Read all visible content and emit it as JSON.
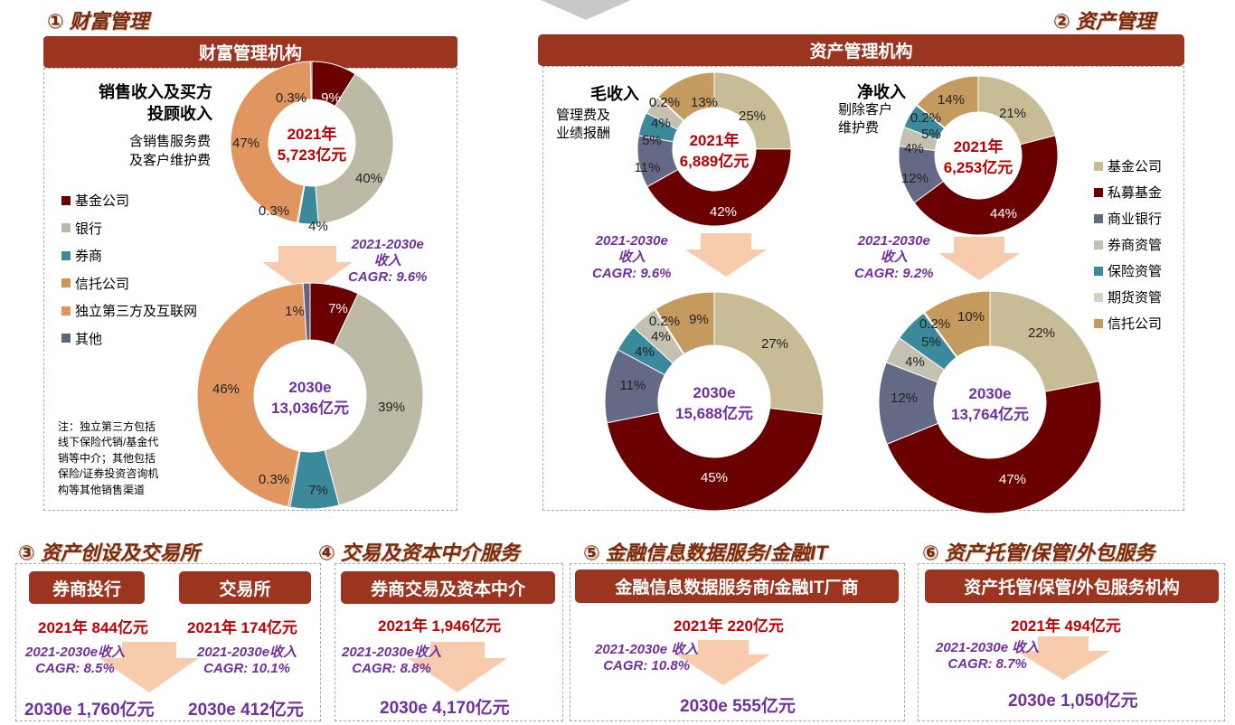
{
  "wealth": {
    "section_title": "① 财富管理",
    "bar_label": "财富管理机构",
    "heading_l1": "销售收入及买方",
    "heading_l2": "投顾收入",
    "sub_l1": "含销售服务费",
    "sub_l2": "及客户维护费",
    "legend": [
      {
        "label": "基金公司",
        "color": "#6b0000"
      },
      {
        "label": "银行",
        "color": "#bcb9a5"
      },
      {
        "label": "券商",
        "color": "#3a8a9c"
      },
      {
        "label": "信托公司",
        "color": "#c49a5e"
      },
      {
        "label": "独立第三方及互联网",
        "color": "#e0965e"
      },
      {
        "label": "其他",
        "color": "#5e6580"
      }
    ],
    "cagr_l1": "2021-2030e",
    "cagr_l2": "收入",
    "cagr_l3": "CAGR: 9.6%",
    "note": [
      "注：独立第三方包括",
      "线下保险代销/基金代",
      "销等中介；其他包括",
      "保险/证券投资咨询机",
      "构等其他销售渠道"
    ]
  },
  "asset": {
    "section_title": "② 资产管理",
    "bar_label": "资产管理机构",
    "gross_title": "毛收入",
    "gross_sub_l1": "管理费及",
    "gross_sub_l2": "业绩报酬",
    "net_title": "净收入",
    "net_sub_l1": "剔除客户",
    "net_sub_l2": "维护费",
    "gross_cagr": [
      "2021-2030e",
      "收入",
      "CAGR: 9.6%"
    ],
    "net_cagr": [
      "2021-2030e",
      "收入",
      "CAGR: 9.2%"
    ],
    "legend": [
      {
        "label": "基金公司",
        "color": "#c8bc96"
      },
      {
        "label": "私募基金",
        "color": "#6b0000"
      },
      {
        "label": "商业银行",
        "color": "#646a85"
      },
      {
        "label": "券商资管",
        "color": "#c4c1b0"
      },
      {
        "label": "保险资管",
        "color": "#3a8a9c"
      },
      {
        "label": "期货资管",
        "color": "#d6d3c6"
      },
      {
        "label": "信托公司",
        "color": "#c49a5e"
      }
    ]
  },
  "chart_data": [
    {
      "type": "pie",
      "id": "wealth-2021",
      "center_l1": "2021年",
      "center_l2": "5,723亿元",
      "labels": [
        "基金公司",
        "银行",
        "券商",
        "信托公司",
        "独立第三方及互联网",
        "其他"
      ],
      "values": [
        9,
        40,
        4,
        0.3,
        47,
        0.3
      ],
      "value_labels": [
        "9%",
        "40%",
        "4%",
        "0.3%",
        "47%",
        "0.3%"
      ]
    },
    {
      "type": "pie",
      "id": "wealth-2030",
      "center_l1": "2030e",
      "center_l2": "13,036亿元",
      "labels": [
        "基金公司",
        "银行",
        "券商",
        "信托公司",
        "独立第三方及互联网",
        "其他"
      ],
      "values": [
        7,
        39,
        7,
        0.3,
        46,
        1
      ],
      "value_labels": [
        "7%",
        "39%",
        "7%",
        "0.3%",
        "46%",
        "1%"
      ]
    },
    {
      "type": "pie",
      "id": "gross-2021",
      "center_l1": "2021年",
      "center_l2": "6,889亿元",
      "labels": [
        "基金公司",
        "私募基金",
        "商业银行",
        "保险资管",
        "券商资管",
        "期货资管",
        "信托公司"
      ],
      "values": [
        25,
        42,
        11,
        5,
        4,
        0.2,
        13
      ],
      "value_labels": [
        "25%",
        "42%",
        "11%",
        "5%",
        "4%",
        "0.2%",
        "13%"
      ]
    },
    {
      "type": "pie",
      "id": "gross-2030",
      "center_l1": "2030e",
      "center_l2": "15,688亿元",
      "labels": [
        "基金公司",
        "私募基金",
        "商业银行",
        "保险资管",
        "券商资管",
        "期货资管",
        "信托公司"
      ],
      "values": [
        27,
        45,
        11,
        4,
        4,
        0.2,
        9
      ],
      "value_labels": [
        "27%",
        "45%",
        "11%",
        "4%",
        "4%",
        "0.2%",
        "9%"
      ]
    },
    {
      "type": "pie",
      "id": "net-2021",
      "center_l1": "2021年",
      "center_l2": "6,253亿元",
      "labels": [
        "基金公司",
        "私募基金",
        "商业银行",
        "券商资管",
        "保险资管",
        "期货资管",
        "信托公司"
      ],
      "values": [
        21,
        44,
        12,
        4,
        5,
        0.2,
        14
      ],
      "value_labels": [
        "21%",
        "44%",
        "12%",
        "4%",
        "5%",
        "0.2%",
        "14%"
      ]
    },
    {
      "type": "pie",
      "id": "net-2030",
      "center_l1": "2030e",
      "center_l2": "13,764亿元",
      "labels": [
        "基金公司",
        "私募基金",
        "商业银行",
        "券商资管",
        "保险资管",
        "期货资管",
        "信托公司"
      ],
      "values": [
        22,
        47,
        12,
        4,
        5,
        0.2,
        10
      ],
      "value_labels": [
        "22%",
        "47%",
        "12%",
        "4%",
        "5%",
        "0.2%",
        "10%"
      ]
    }
  ],
  "bottom": {
    "s3": {
      "title": "③ 资产创设及交易所",
      "a": {
        "label": "券商投行",
        "y2021": "2021年 844亿元",
        "cagr1": "2021-2030e收入",
        "cagr2": "CAGR: 8.5%",
        "y2030": "2030e 1,760亿元"
      },
      "b": {
        "label": "交易所",
        "y2021": "2021年 174亿元",
        "cagr1": "2021-2030e收入",
        "cagr2": "CAGR: 10.1%",
        "y2030": "2030e 412亿元"
      }
    },
    "s4": {
      "title": "④ 交易及资本中介服务",
      "label": "券商交易及资本中介",
      "y2021": "2021年 1,946亿元",
      "cagr1": "2021-2030e收入",
      "cagr2": "CAGR: 8.8%",
      "y2030": "2030e 4,170亿元"
    },
    "s5": {
      "title": "⑤ 金融信息数据服务/金融IT",
      "label": "金融信息数据服务商/金融IT厂商",
      "y2021": "2021年 220亿元",
      "cagr1": "2021-2030e 收入",
      "cagr2": "CAGR: 10.8%",
      "y2030": "2030e 555亿元"
    },
    "s6": {
      "title": "⑥ 资产托管/保管/外包服务",
      "label": "资产托管/保管/外包服务机构",
      "y2021": "2021年 494亿元",
      "cagr1": "2021-2030e 收入",
      "cagr2": "CAGR: 8.7%",
      "y2030": "2030e 1,050亿元"
    }
  }
}
